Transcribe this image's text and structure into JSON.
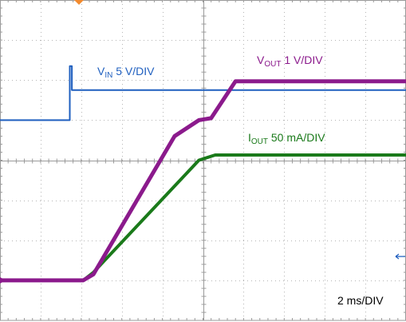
{
  "chart_data": {
    "type": "line",
    "title": "",
    "grid": true,
    "time_per_div": "2 ms/DIV",
    "divisions": {
      "x": 10,
      "y": 8
    },
    "xlim": [
      0,
      10
    ],
    "ylim": [
      0,
      8
    ],
    "x_unit": "div",
    "y_unit": "div",
    "series": [
      {
        "name_main": "V",
        "name_sub": "IN",
        "name_rest": " 5 V/DIV",
        "color": "#1f5fbf",
        "points": [
          [
            -0.5,
            5.0
          ],
          [
            1.72,
            5.0
          ],
          [
            1.72,
            6.35
          ],
          [
            1.77,
            6.35
          ],
          [
            1.77,
            5.75
          ],
          [
            1.95,
            5.75
          ],
          [
            10.5,
            5.75
          ]
        ]
      },
      {
        "name_main": "V",
        "name_sub": "OUT",
        "name_rest": " 1 V/DIV",
        "color": "#8b1a8c",
        "points": [
          [
            -0.5,
            1.0
          ],
          [
            2.05,
            1.0
          ],
          [
            2.3,
            1.15
          ],
          [
            4.3,
            4.6
          ],
          [
            4.9,
            5.0
          ],
          [
            5.2,
            5.05
          ],
          [
            5.8,
            5.97
          ],
          [
            10.5,
            5.97
          ]
        ]
      },
      {
        "name_main": "I",
        "name_sub": "OUT",
        "name_rest": " 50 mA/DIV",
        "color": "#1a7a1a",
        "points": [
          [
            -0.5,
            1.0
          ],
          [
            2.05,
            1.0
          ],
          [
            2.3,
            1.2
          ],
          [
            4.9,
            4.0
          ],
          [
            5.3,
            4.13
          ],
          [
            10.5,
            4.13
          ]
        ]
      }
    ]
  },
  "markers": {
    "trigger_color": "#f28a2e",
    "ground_color": "#8b1a8c",
    "arrow_color": "#1f5fbf"
  }
}
